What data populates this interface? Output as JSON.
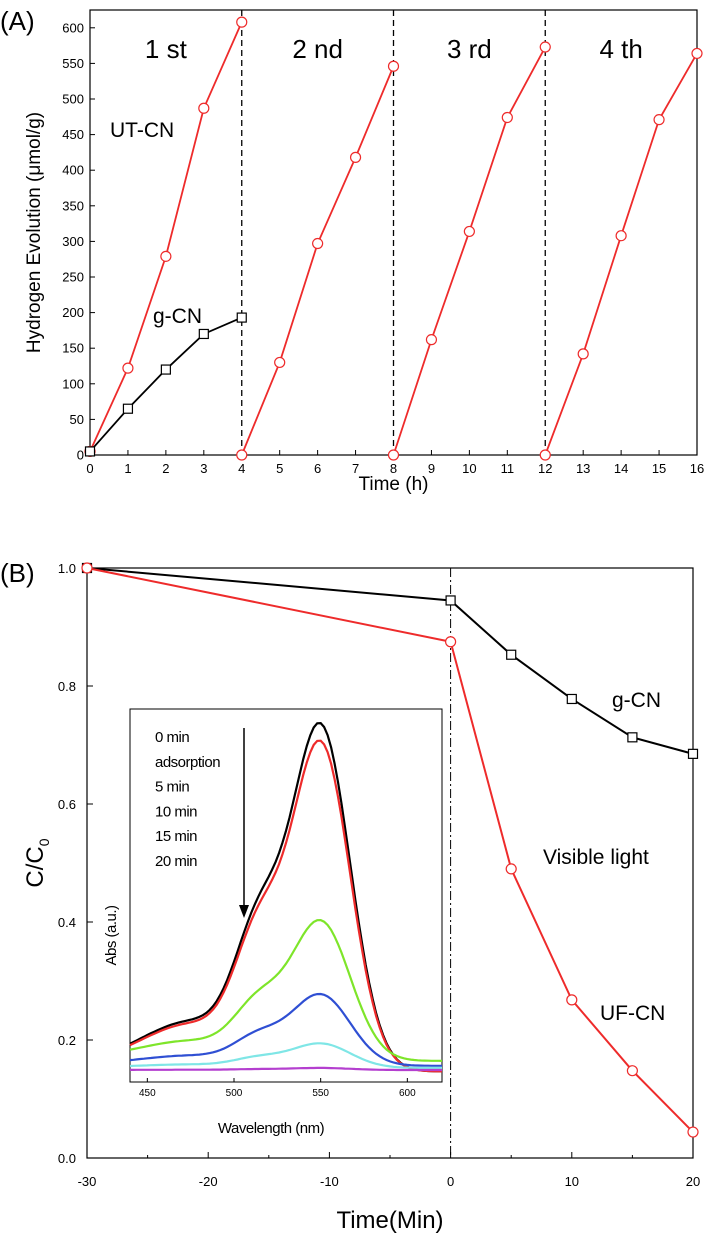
{
  "colors": {
    "red": "#ee2b2b",
    "black": "#000000",
    "green": "#7ee52a",
    "blue": "#2f4fd3",
    "cyan": "#7fe6e6",
    "purple": "#b43fcf"
  },
  "chart_data": [
    {
      "panel_label": "(A)",
      "type": "line",
      "xlabel": "Time (h)",
      "ylabel": "Hydrogen Evolution (μmol/g)",
      "xlim": [
        0,
        16
      ],
      "ylim": [
        0,
        625
      ],
      "xticks": [
        "0",
        "1",
        "2",
        "3",
        "4",
        "5",
        "6",
        "7",
        "8",
        "9",
        "10",
        "11",
        "12",
        "13",
        "14",
        "15",
        "16"
      ],
      "yticks": [
        "0",
        "50",
        "100",
        "150",
        "200",
        "250",
        "300",
        "350",
        "400",
        "450",
        "500",
        "550",
        "600"
      ],
      "cycle_labels": [
        "1 st",
        "2 nd",
        "3 rd",
        "4 th"
      ],
      "dividers_x": [
        4,
        8,
        12
      ],
      "series": [
        {
          "name": "UT-CN",
          "marker": "circle",
          "color": "#ee2b2b",
          "segments": [
            [
              [
                0,
                5
              ],
              [
                1,
                122
              ],
              [
                2,
                279
              ],
              [
                3,
                487
              ],
              [
                4,
                608
              ]
            ],
            [
              [
                4,
                0
              ],
              [
                5,
                130
              ],
              [
                6,
                297
              ],
              [
                7,
                418
              ],
              [
                8,
                546
              ]
            ],
            [
              [
                8,
                0
              ],
              [
                9,
                162
              ],
              [
                10,
                314
              ],
              [
                11,
                474
              ],
              [
                12,
                573
              ]
            ],
            [
              [
                12,
                0
              ],
              [
                13,
                142
              ],
              [
                14,
                308
              ],
              [
                15,
                471
              ],
              [
                16,
                564
              ]
            ]
          ]
        },
        {
          "name": "g-CN",
          "marker": "square",
          "color": "#000000",
          "segments": [
            [
              [
                0,
                5
              ],
              [
                1,
                65
              ],
              [
                2,
                120
              ],
              [
                3,
                170
              ],
              [
                4,
                193
              ]
            ]
          ]
        }
      ]
    },
    {
      "panel_label": "(B)",
      "type": "line",
      "xlabel": "Time(Min)",
      "ylabel_main": "C/C",
      "ylabel_sub": "0",
      "xlim": [
        -30,
        20
      ],
      "ylim": [
        0.0,
        1.0
      ],
      "xticks": [
        "-30",
        "-20",
        "-10",
        "0",
        "10",
        "20"
      ],
      "yticks": [
        "0.0",
        "0.2",
        "0.4",
        "0.6",
        "0.8",
        "1.0"
      ],
      "annotation": "Visible light",
      "series": [
        {
          "name": "g-CN",
          "marker": "square",
          "color": "#000000",
          "points": [
            [
              -30,
              1.0
            ],
            [
              0,
              0.945
            ],
            [
              5,
              0.853
            ],
            [
              10,
              0.778
            ],
            [
              15,
              0.713
            ],
            [
              20,
              0.685
            ]
          ]
        },
        {
          "name": "UF-CN",
          "marker": "circle",
          "color": "#ee2b2b",
          "points": [
            [
              -30,
              1.0
            ],
            [
              0,
              0.875
            ],
            [
              5,
              0.49
            ],
            [
              10,
              0.268
            ],
            [
              15,
              0.148
            ],
            [
              20,
              0.044
            ]
          ]
        }
      ],
      "inset": {
        "type": "line",
        "xlabel": "Wavelength (nm)",
        "ylabel": "Abs (a.u.)",
        "xlim": [
          440,
          620
        ],
        "xticks": [
          "450",
          "500",
          "550",
          "600"
        ],
        "legend": [
          "0 min",
          "adsorption",
          "5 min",
          "10 min",
          "15 min",
          "20 min"
        ],
        "curves": [
          {
            "label": "0 min",
            "color": "#000000",
            "peak": 0.63,
            "base": 0.135
          },
          {
            "label": "adsorption",
            "color": "#ee2b2b",
            "peak": 0.605,
            "base": 0.135
          },
          {
            "label": "5 min",
            "color": "#7ee52a",
            "peak": 0.35,
            "base": 0.15
          },
          {
            "label": "10 min",
            "color": "#2f4fd3",
            "peak": 0.245,
            "base": 0.143
          },
          {
            "label": "15 min",
            "color": "#7fe6e6",
            "peak": 0.175,
            "base": 0.14
          },
          {
            "label": "20 min",
            "color": "#b43fcf",
            "peak": 0.14,
            "base": 0.137
          }
        ]
      }
    }
  ]
}
